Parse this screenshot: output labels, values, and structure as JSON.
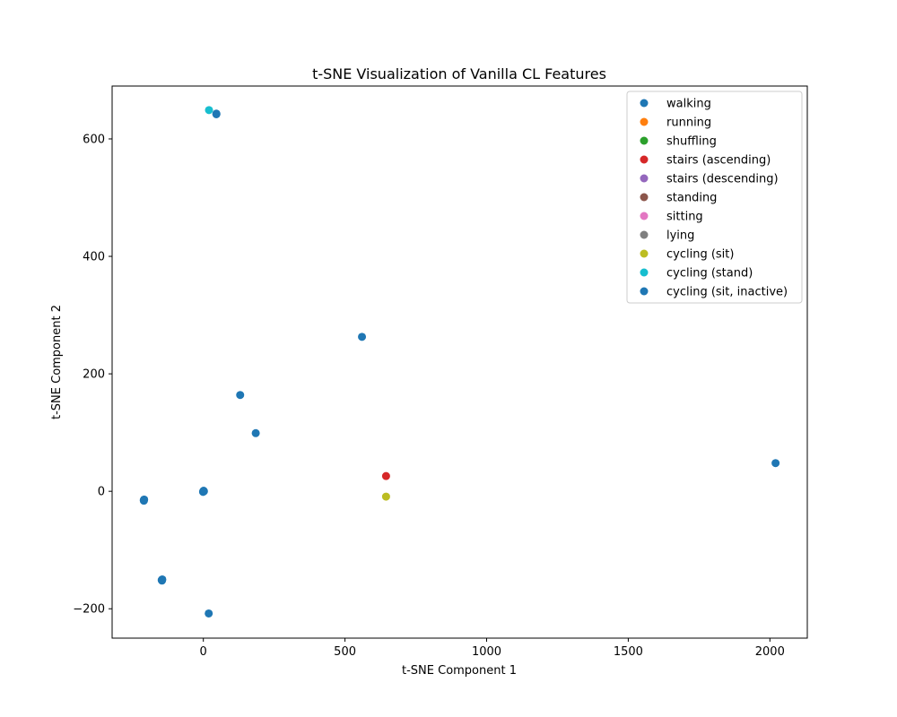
{
  "chart_data": {
    "type": "scatter",
    "title": "t-SNE Visualization of Vanilla CL Features",
    "xlabel": "t-SNE Component 1",
    "ylabel": "t-SNE Component 2",
    "xlim": [
      -322,
      2132
    ],
    "ylim": [
      -250,
      690
    ],
    "xticks": [
      0,
      500,
      1000,
      1500,
      2000
    ],
    "xtick_labels": [
      "0",
      "500",
      "1000",
      "1500",
      "2000"
    ],
    "yticks": [
      -200,
      0,
      200,
      400,
      600
    ],
    "ytick_labels": [
      "−200",
      "0",
      "200",
      "400",
      "600"
    ],
    "grid": false,
    "legend_position": "top-right",
    "series": [
      {
        "name": "walking",
        "color": "#1f77b4",
        "points": [
          [
            -210,
            -15
          ],
          [
            -210,
            -16
          ],
          [
            -209,
            -14
          ],
          [
            -147,
            -151
          ],
          [
            -146,
            -152
          ],
          [
            -145,
            -150
          ],
          [
            0,
            0
          ],
          [
            1,
            1
          ],
          [
            -1,
            -1
          ],
          [
            2,
            0
          ],
          [
            19,
            -208
          ],
          [
            46,
            643
          ],
          [
            130,
            164
          ],
          [
            185,
            99
          ],
          [
            560,
            263
          ],
          [
            2020,
            48
          ]
        ]
      },
      {
        "name": "running",
        "color": "#ff7f0e",
        "points": []
      },
      {
        "name": "shuffling",
        "color": "#2ca02c",
        "points": []
      },
      {
        "name": "stairs (ascending)",
        "color": "#d62728",
        "points": [
          [
            645,
            26
          ]
        ]
      },
      {
        "name": "stairs (descending)",
        "color": "#9467bd",
        "points": []
      },
      {
        "name": "standing",
        "color": "#8c564b",
        "points": []
      },
      {
        "name": "sitting",
        "color": "#e377c2",
        "points": []
      },
      {
        "name": "lying",
        "color": "#7f7f7f",
        "points": []
      },
      {
        "name": "cycling (sit)",
        "color": "#bcbd22",
        "points": [
          [
            645,
            -9
          ]
        ]
      },
      {
        "name": "cycling (stand)",
        "color": "#17becf",
        "points": [
          [
            20,
            649
          ]
        ]
      },
      {
        "name": "cycling (sit, inactive)",
        "color": "#1f77b4",
        "points": [
          [
            46,
            642
          ],
          [
            -210,
            -15
          ],
          [
            -146,
            -151
          ],
          [
            0,
            0
          ]
        ]
      }
    ]
  }
}
